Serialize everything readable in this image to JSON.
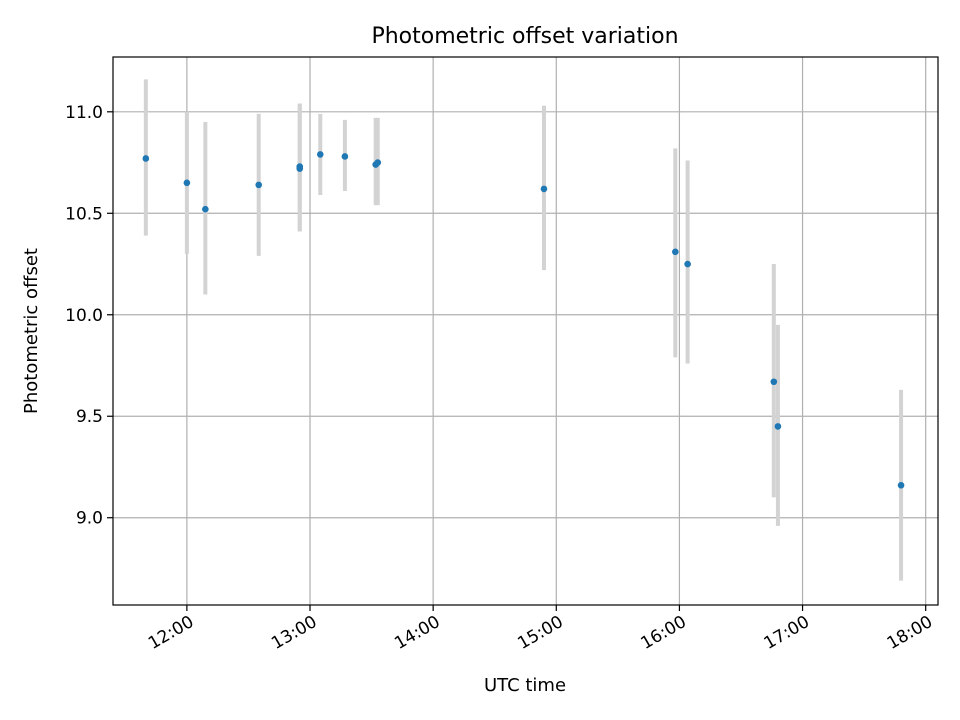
{
  "chart_data": {
    "type": "scatter",
    "title": "Photometric offset variation",
    "xlabel": "UTC time",
    "ylabel": "Photometric offset",
    "x_axis_kind": "time",
    "xlim": [
      "11:24",
      "18:06"
    ],
    "ylim": [
      8.57,
      11.27
    ],
    "xticks": [
      "12:00",
      "13:00",
      "14:00",
      "15:00",
      "16:00",
      "17:00",
      "18:00"
    ],
    "yticks": [
      9.0,
      9.5,
      10.0,
      10.5,
      11.0
    ],
    "ytick_labels": [
      "9.0",
      "9.5",
      "10.0",
      "10.5",
      "11.0"
    ],
    "grid": true,
    "points": [
      {
        "x": "11:40",
        "y": 10.77,
        "yerr_low": 10.39,
        "yerr_high": 11.16
      },
      {
        "x": "12:00",
        "y": 10.65,
        "yerr_low": 10.3,
        "yerr_high": 11.0
      },
      {
        "x": "12:09",
        "y": 10.52,
        "yerr_low": 10.1,
        "yerr_high": 10.95
      },
      {
        "x": "12:35",
        "y": 10.64,
        "yerr_low": 10.29,
        "yerr_high": 10.99
      },
      {
        "x": "12:55",
        "y": 10.73,
        "yerr_low": 10.41,
        "yerr_high": 11.04
      },
      {
        "x": "12:55",
        "y": 10.72,
        "yerr_low": 10.41,
        "yerr_high": 11.04
      },
      {
        "x": "13:05",
        "y": 10.79,
        "yerr_low": 10.59,
        "yerr_high": 10.99
      },
      {
        "x": "13:17",
        "y": 10.78,
        "yerr_low": 10.61,
        "yerr_high": 10.96
      },
      {
        "x": "13:32",
        "y": 10.74,
        "yerr_low": 10.54,
        "yerr_high": 10.97
      },
      {
        "x": "13:33",
        "y": 10.75,
        "yerr_low": 10.54,
        "yerr_high": 10.97
      },
      {
        "x": "14:54",
        "y": 10.62,
        "yerr_low": 10.22,
        "yerr_high": 11.03
      },
      {
        "x": "15:58",
        "y": 10.31,
        "yerr_low": 9.79,
        "yerr_high": 10.82
      },
      {
        "x": "16:04",
        "y": 10.25,
        "yerr_low": 9.76,
        "yerr_high": 10.76
      },
      {
        "x": "16:46",
        "y": 9.67,
        "yerr_low": 9.1,
        "yerr_high": 10.25
      },
      {
        "x": "16:48",
        "y": 9.45,
        "yerr_low": 8.96,
        "yerr_high": 9.95
      },
      {
        "x": "17:48",
        "y": 9.16,
        "yerr_low": 8.69,
        "yerr_high": 9.63
      }
    ],
    "colors": {
      "marker": "#1f77b4",
      "errorbar": "#d3d3d3",
      "grid": "#b0b0b0",
      "axes": "#000000"
    }
  }
}
